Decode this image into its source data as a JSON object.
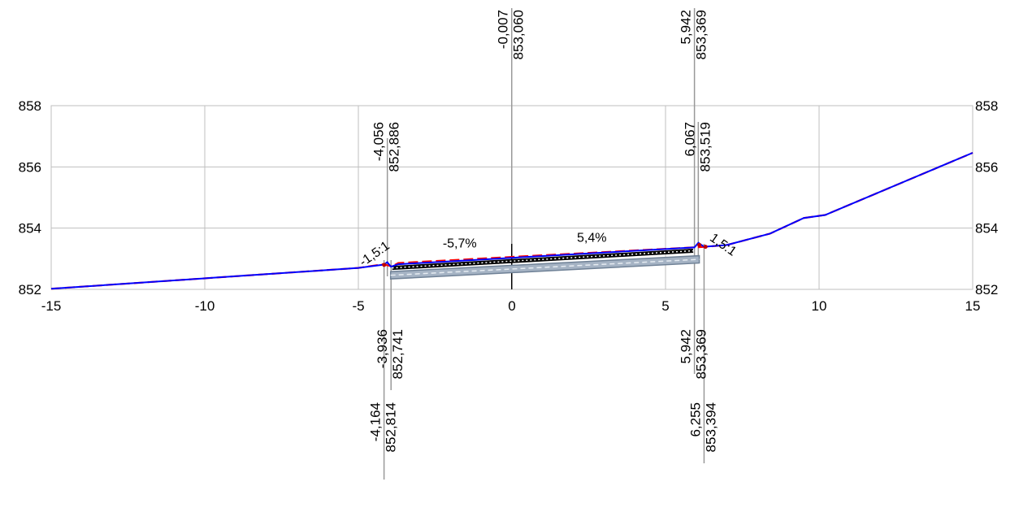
{
  "chart_data": {
    "type": "line",
    "title": "",
    "xlabel": "",
    "ylabel": "",
    "xlim": [
      -15,
      15
    ],
    "ylim": [
      852,
      858
    ],
    "x_ticks": [
      "-15",
      "-10",
      "-5",
      "0",
      "5",
      "10",
      "15"
    ],
    "y_ticks": [
      "852",
      "854",
      "856",
      "858"
    ],
    "grid": true,
    "series": [
      {
        "color": "#ff0000",
        "style": "dashed",
        "points": [
          [
            -15,
            852.02
          ],
          [
            -5,
            852.7
          ],
          [
            -4.2,
            852.82
          ],
          [
            -3.9,
            852.75
          ],
          [
            -3.7,
            852.86
          ],
          [
            0,
            853.06
          ],
          [
            5.9,
            853.37
          ],
          [
            6.3,
            853.39
          ],
          [
            7,
            853.45
          ],
          [
            8.4,
            853.82
          ],
          [
            9.5,
            854.33
          ],
          [
            10.2,
            854.43
          ],
          [
            15,
            856.46
          ]
        ]
      },
      {
        "color": "#0000ff",
        "style": "solid",
        "points": [
          [
            -15,
            852.02
          ],
          [
            -5,
            852.7
          ],
          [
            -4.16,
            852.81
          ],
          [
            -4.06,
            852.89
          ],
          [
            -3.94,
            852.74
          ],
          [
            -3.7,
            852.82
          ],
          [
            0,
            853.03
          ],
          [
            5.94,
            853.37
          ],
          [
            6.07,
            853.52
          ],
          [
            6.26,
            853.39
          ],
          [
            7,
            853.45
          ],
          [
            8.4,
            853.82
          ],
          [
            9.5,
            854.33
          ],
          [
            10.2,
            854.43
          ],
          [
            15,
            856.46
          ]
        ]
      }
    ],
    "vertical_markers": [
      {
        "x": -0.007,
        "label_top": [
          "-0,007",
          "853,060"
        ]
      },
      {
        "x": 5.942,
        "label_top": [
          "5,942",
          "853,369"
        ]
      },
      {
        "x": -4.056,
        "label_mid": [
          "-4,056",
          "852,886"
        ]
      },
      {
        "x": 6.067,
        "label_mid": [
          "6,067",
          "853,519"
        ]
      },
      {
        "x": -3.936,
        "label_bottom": [
          "-3,936",
          "852,741"
        ]
      },
      {
        "x": 5.942,
        "label_bottom": [
          "5,942",
          "853,369"
        ]
      },
      {
        "x": -4.164,
        "label_bottom2": [
          "-4,164",
          "852,814"
        ]
      },
      {
        "x": 6.255,
        "label_bottom2": [
          "6,255",
          "853,394"
        ]
      }
    ],
    "annotations": [
      {
        "text": "-5,7%",
        "x": -1.7,
        "y": 853.37
      },
      {
        "text": "5,4%",
        "x": 2.6,
        "y": 853.55
      },
      {
        "text": "-1,5:1",
        "x": -4.4,
        "y": 853.05,
        "rotate": -35
      },
      {
        "text": "1,5:1",
        "x": 6.8,
        "y": 853.35,
        "rotate": 35
      }
    ],
    "layers": [
      {
        "color": "#000000",
        "style": "dotted",
        "from": [
          -3.9,
          852.7
        ],
        "to": [
          5.9,
          853.26
        ]
      },
      {
        "color": "#7f8fa6",
        "from": [
          -3.95,
          852.58
        ],
        "to": [
          6.1,
          853.1
        ]
      }
    ]
  }
}
